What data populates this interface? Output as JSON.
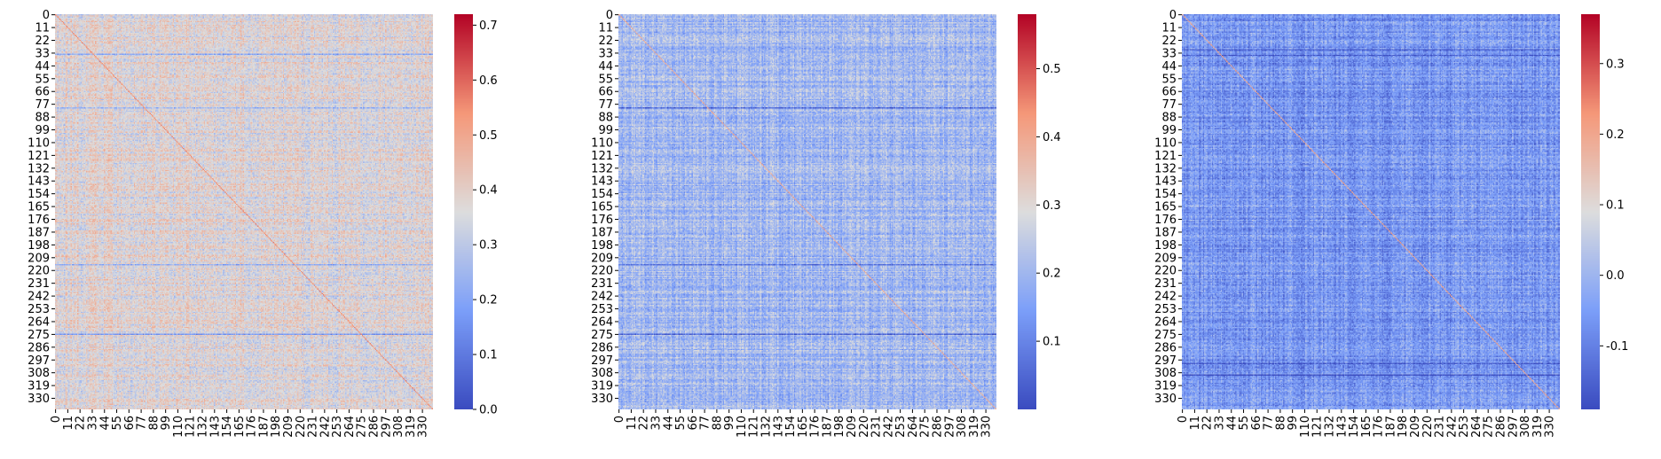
{
  "chart_data": [
    {
      "type": "heatmap",
      "title": "",
      "xlabel": "",
      "ylabel": "",
      "cmap": "coolwarm",
      "matrix_size": 340,
      "x_tick_labels": [
        "0",
        "11",
        "22",
        "33",
        "44",
        "55",
        "66",
        "77",
        "88",
        "99",
        "110",
        "121",
        "132",
        "143",
        "154",
        "165",
        "176",
        "187",
        "198",
        "209",
        "220",
        "231",
        "242",
        "253",
        "264",
        "275",
        "286",
        "297",
        "308",
        "319",
        "330"
      ],
      "y_tick_labels": [
        "0",
        "11",
        "22",
        "33",
        "44",
        "55",
        "66",
        "77",
        "88",
        "99",
        "110",
        "121",
        "132",
        "143",
        "154",
        "165",
        "176",
        "187",
        "198",
        "209",
        "220",
        "231",
        "242",
        "253",
        "264",
        "275",
        "286",
        "297",
        "308",
        "319",
        "330"
      ],
      "colorbar_min": 0.0,
      "colorbar_max": 0.72,
      "colorbar_ticks": [
        "0.0",
        "0.1",
        "0.2",
        "0.3",
        "0.4",
        "0.5",
        "0.6",
        "0.7"
      ],
      "colorbar_tick_values": [
        0.0,
        0.1,
        0.2,
        0.3,
        0.4,
        0.5,
        0.6,
        0.7
      ],
      "typical_value": 0.37,
      "diagonal_value": 0.55,
      "dark_rows": [
        34,
        80,
        215,
        275
      ]
    },
    {
      "type": "heatmap",
      "title": "",
      "xlabel": "",
      "ylabel": "",
      "cmap": "coolwarm",
      "matrix_size": 340,
      "x_tick_labels": [
        "0",
        "11",
        "22",
        "33",
        "44",
        "55",
        "66",
        "77",
        "88",
        "99",
        "110",
        "121",
        "132",
        "143",
        "154",
        "165",
        "176",
        "187",
        "198",
        "209",
        "220",
        "231",
        "242",
        "253",
        "264",
        "275",
        "286",
        "297",
        "308",
        "319",
        "330"
      ],
      "y_tick_labels": [
        "0",
        "11",
        "22",
        "33",
        "44",
        "55",
        "66",
        "77",
        "88",
        "99",
        "110",
        "121",
        "132",
        "143",
        "154",
        "165",
        "176",
        "187",
        "198",
        "209",
        "220",
        "231",
        "242",
        "253",
        "264",
        "275",
        "286",
        "297",
        "308",
        "319",
        "330"
      ],
      "colorbar_min": 0.0,
      "colorbar_max": 0.58,
      "colorbar_ticks": [
        "0.1",
        "0.2",
        "0.3",
        "0.4",
        "0.5"
      ],
      "colorbar_tick_values": [
        0.1,
        0.2,
        0.3,
        0.4,
        0.5
      ],
      "typical_value": 0.2,
      "diagonal_value": 0.4,
      "dark_rows": [
        80,
        215,
        275
      ]
    },
    {
      "type": "heatmap",
      "title": "",
      "xlabel": "",
      "ylabel": "",
      "cmap": "coolwarm",
      "matrix_size": 340,
      "x_tick_labels": [
        "0",
        "11",
        "22",
        "33",
        "44",
        "55",
        "66",
        "77",
        "88",
        "99",
        "110",
        "121",
        "132",
        "143",
        "154",
        "165",
        "176",
        "187",
        "198",
        "209",
        "220",
        "231",
        "242",
        "253",
        "264",
        "275",
        "286",
        "297",
        "308",
        "319",
        "330"
      ],
      "y_tick_labels": [
        "0",
        "11",
        "22",
        "33",
        "44",
        "55",
        "66",
        "77",
        "88",
        "99",
        "110",
        "121",
        "132",
        "143",
        "154",
        "165",
        "176",
        "187",
        "198",
        "209",
        "220",
        "231",
        "242",
        "253",
        "264",
        "275",
        "286",
        "297",
        "308",
        "319",
        "330"
      ],
      "colorbar_min": -0.19,
      "colorbar_max": 0.37,
      "colorbar_ticks": [
        "-0.1",
        "0.0",
        "0.1",
        "0.2",
        "0.3"
      ],
      "colorbar_tick_values": [
        -0.1,
        0.0,
        0.1,
        0.2,
        0.3
      ],
      "typical_value": -0.06,
      "diagonal_value": 0.2,
      "dark_rows": [
        30,
        35,
        300,
        310
      ]
    }
  ]
}
